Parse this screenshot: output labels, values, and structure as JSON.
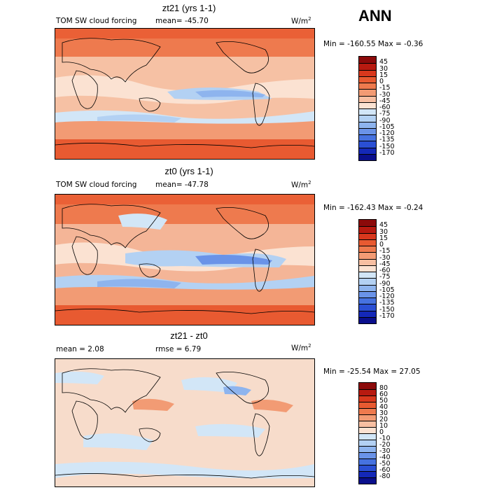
{
  "header": {
    "season": "ANN"
  },
  "panels": [
    {
      "id": "p1",
      "title": "zt21 (yrs 1-1)",
      "left_label": "TOM SW cloud forcing",
      "center_label": "mean= -45.70",
      "units": "W/m",
      "units_sup": "2",
      "minmax": "Min = -160.55 Max =   -0.36",
      "colorbar": {
        "labels": [
          "45",
          "30",
          "15",
          "0",
          "-15",
          "-30",
          "-45",
          "-60",
          "-75",
          "-90",
          "-105",
          "-120",
          "-135",
          "-150",
          "-170"
        ],
        "colors": [
          "#8c0a0a",
          "#b81a10",
          "#d9381d",
          "#e85a31",
          "#ee7a4e",
          "#f29b74",
          "#f7bfa2",
          "#fbe2d2",
          "#d2e6f7",
          "#b3d1f3",
          "#8eb4ee",
          "#6a93e8",
          "#4672e0",
          "#2a4fd4",
          "#1428b8",
          "#0a0f8c"
        ]
      },
      "base_color": "#f6c1a4"
    },
    {
      "id": "p2",
      "title": "zt0 (yrs 1-1)",
      "left_label": "TOM SW cloud forcing",
      "center_label": "mean= -47.78",
      "units": "W/m",
      "units_sup": "2",
      "minmax": "Min = -162.43 Max =   -0.24",
      "colorbar": {
        "labels": [
          "45",
          "30",
          "15",
          "0",
          "-15",
          "-30",
          "-45",
          "-60",
          "-75",
          "-90",
          "-105",
          "-120",
          "-135",
          "-150",
          "-170"
        ],
        "colors": [
          "#8c0a0a",
          "#b81a10",
          "#d9381d",
          "#e85a31",
          "#ee7a4e",
          "#f29b74",
          "#f7bfa2",
          "#fbe2d2",
          "#d2e6f7",
          "#b3d1f3",
          "#8eb4ee",
          "#6a93e8",
          "#4672e0",
          "#2a4fd4",
          "#1428b8",
          "#0a0f8c"
        ]
      },
      "base_color": "#f4b597"
    },
    {
      "id": "p3",
      "title": "zt21 - zt0",
      "left_label": "mean =     2.08",
      "center_label": "rmse =     6.79",
      "units": "W/m",
      "units_sup": "2",
      "minmax": "Min = -25.54 Max =  27.05",
      "colorbar": {
        "labels": [
          "80",
          "60",
          "50",
          "40",
          "30",
          "20",
          "10",
          "0",
          "-10",
          "-20",
          "-30",
          "-40",
          "-50",
          "-60",
          "-80"
        ],
        "colors": [
          "#8c0a0a",
          "#b81a10",
          "#d9381d",
          "#e85a31",
          "#ee7a4e",
          "#f29b74",
          "#f7bfa2",
          "#fbe2d2",
          "#d2e6f7",
          "#b3d1f3",
          "#8eb4ee",
          "#6a93e8",
          "#4672e0",
          "#2a4fd4",
          "#1428b8",
          "#0a0f8c"
        ]
      },
      "base_color": "#f7dccb"
    }
  ]
}
